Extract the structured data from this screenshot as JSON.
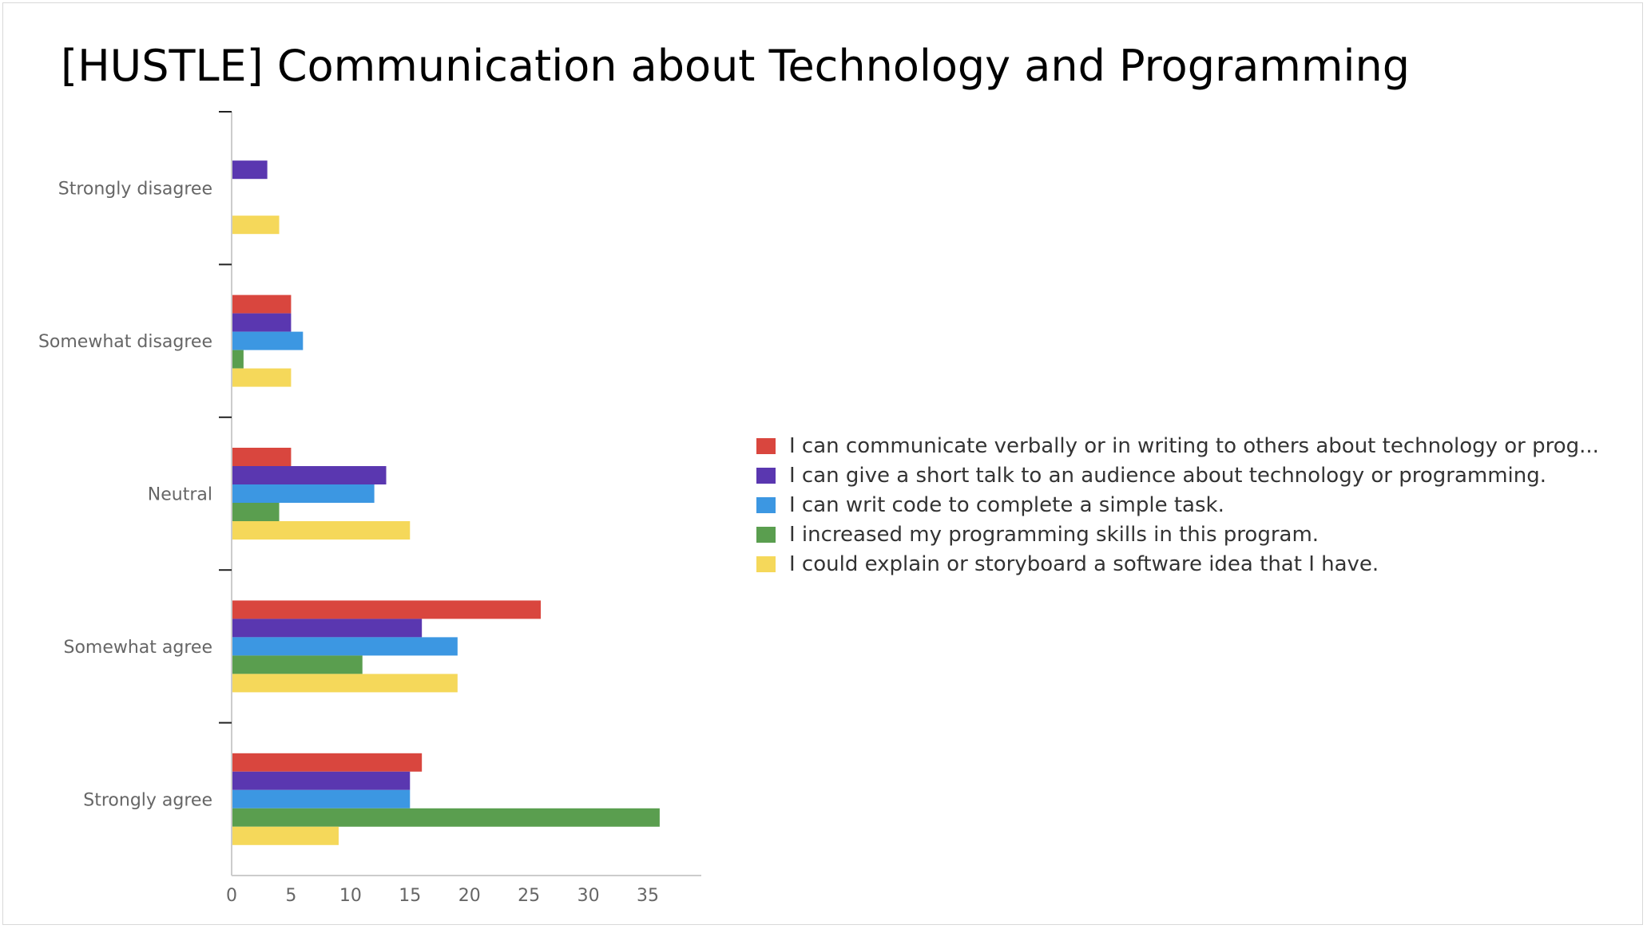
{
  "slide": {
    "title": "[HUSTLE] Communication about Technology and Programming"
  },
  "chart_data": {
    "type": "bar",
    "orientation": "horizontal",
    "categories": [
      "Strongly disagree",
      "Somewhat disagree",
      "Neutral",
      "Somewhat agree",
      "Strongly agree"
    ],
    "series": [
      {
        "name": "I can communicate verbally or in writing to others about technology or prog...",
        "color": "#d9463e",
        "values": [
          0,
          5,
          5,
          26,
          16
        ]
      },
      {
        "name": "I can give a short talk to an audience about technology or programming.",
        "color": "#5a37b0",
        "values": [
          3,
          5,
          13,
          16,
          15
        ]
      },
      {
        "name": "I can writ code to complete a simple task.",
        "color": "#3c97e2",
        "values": [
          0,
          6,
          12,
          19,
          15
        ]
      },
      {
        "name": "I increased my programming skills in this program.",
        "color": "#5a9e4f",
        "values": [
          0,
          1,
          4,
          11,
          36
        ]
      },
      {
        "name": "I could explain or storyboard a software idea that I have.",
        "color": "#f5d85a",
        "values": [
          4,
          5,
          15,
          19,
          9
        ]
      }
    ],
    "xticks": [
      0,
      5,
      10,
      15,
      20,
      25,
      30,
      35
    ],
    "xlim": [
      0,
      39.5
    ],
    "grid": false,
    "legend": "right"
  }
}
